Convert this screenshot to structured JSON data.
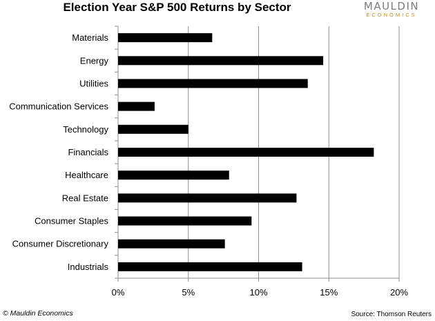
{
  "chart_data": {
    "type": "bar",
    "orientation": "horizontal",
    "title": "Election Year S&P 500 Returns by Sector",
    "categories": [
      "Materials",
      "Energy",
      "Utilities",
      "Communication Services",
      "Technology",
      "Financials",
      "Healthcare",
      "Real Estate",
      "Consumer Staples",
      "Consumer Discretionary",
      "Industrials"
    ],
    "values": [
      6.7,
      14.6,
      13.5,
      2.6,
      5.0,
      18.2,
      7.9,
      12.7,
      9.5,
      7.6,
      13.1
    ],
    "xlim": [
      0,
      20
    ],
    "xticks": [
      0,
      5,
      10,
      15,
      20
    ],
    "xtick_labels": [
      "0%",
      "5%",
      "10%",
      "15%",
      "20%"
    ],
    "grid": "vertical",
    "bar_color": "#000000",
    "grid_color": "#8c8c8c"
  },
  "logo": {
    "name": "MAULDIN",
    "sub": "ECONOMICS"
  },
  "footer": {
    "copyright": "© Mauldin Economics",
    "source": "Source: Thomson Reuters"
  }
}
